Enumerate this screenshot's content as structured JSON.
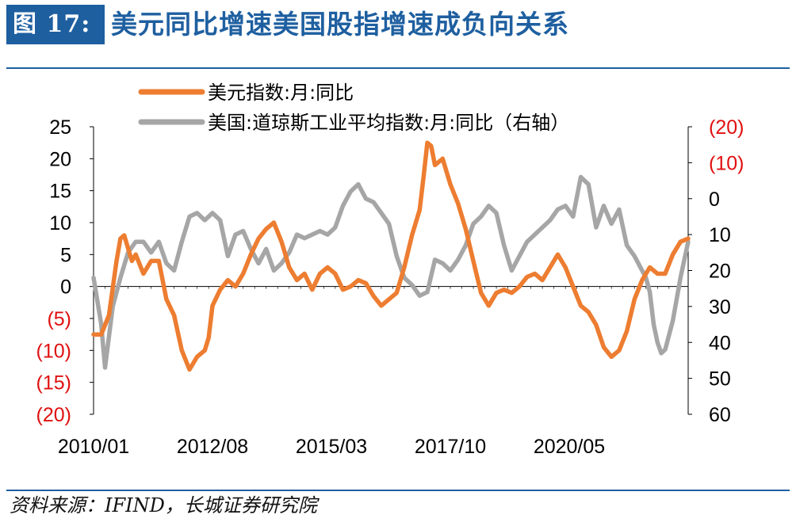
{
  "header": {
    "figure_label": "图 17:",
    "title": "美元同比增速美国股指增速成负向关系"
  },
  "footer": {
    "source": "资料来源：IFIND，长城证券研究院"
  },
  "colors": {
    "brand_blue": "#1e5fa0",
    "usd_series": "#ed7d31",
    "dow_series": "#a6a6a6",
    "negative_label": "#e01010"
  },
  "chart_data": {
    "type": "line",
    "title": "",
    "x_axis": {
      "tick_labels": [
        "2010/01",
        "2012/08",
        "2015/03",
        "2017/10",
        "2020/05"
      ],
      "range": [
        "2010/01",
        "2022/12"
      ]
    },
    "left_axis": {
      "range": [
        -20,
        25
      ],
      "ticks": [
        25,
        20,
        15,
        10,
        5,
        0,
        -5,
        -10,
        -15,
        -20
      ],
      "tick_labels": [
        "25",
        "20",
        "15",
        "10",
        "5",
        "0",
        "(5)",
        "(10)",
        "(15)",
        "(20)"
      ]
    },
    "right_axis": {
      "inverted": true,
      "range": [
        -20,
        60
      ],
      "ticks": [
        -20,
        -10,
        0,
        10,
        20,
        30,
        40,
        50,
        60
      ],
      "tick_labels": [
        "(20)",
        "(10)",
        "0",
        "10",
        "20",
        "30",
        "40",
        "50",
        "60"
      ]
    },
    "legend_position": "top-left",
    "grid": false,
    "series": [
      {
        "name": "美元指数:月:同比",
        "axis": "left",
        "color": "#ed7d31",
        "points": [
          [
            "2010/01",
            -7.5
          ],
          [
            "2010/03",
            -7.5
          ],
          [
            "2010/05",
            -4.5
          ],
          [
            "2010/07",
            4
          ],
          [
            "2010/08",
            7.5
          ],
          [
            "2010/09",
            8
          ],
          [
            "2010/10",
            6
          ],
          [
            "2010/11",
            4
          ],
          [
            "2010/12",
            5
          ],
          [
            "2011/02",
            2
          ],
          [
            "2011/04",
            4
          ],
          [
            "2011/06",
            4
          ],
          [
            "2011/08",
            -2
          ],
          [
            "2011/10",
            -4.5
          ],
          [
            "2011/12",
            -10
          ],
          [
            "2012/02",
            -13
          ],
          [
            "2012/04",
            -11
          ],
          [
            "2012/06",
            -10
          ],
          [
            "2012/07",
            -8
          ],
          [
            "2012/08",
            -3
          ],
          [
            "2012/10",
            -0.5
          ],
          [
            "2012/12",
            1
          ],
          [
            "2013/02",
            0
          ],
          [
            "2013/04",
            2
          ],
          [
            "2013/06",
            5
          ],
          [
            "2013/08",
            7.5
          ],
          [
            "2013/10",
            9
          ],
          [
            "2013/12",
            10
          ],
          [
            "2014/02",
            7
          ],
          [
            "2014/04",
            3
          ],
          [
            "2014/06",
            1
          ],
          [
            "2014/08",
            2
          ],
          [
            "2014/10",
            -0.5
          ],
          [
            "2014/12",
            2
          ],
          [
            "2015/02",
            3
          ],
          [
            "2015/04",
            2
          ],
          [
            "2015/06",
            -0.5
          ],
          [
            "2015/08",
            0
          ],
          [
            "2015/10",
            1
          ],
          [
            "2015/12",
            0.5
          ],
          [
            "2016/02",
            -1.5
          ],
          [
            "2016/04",
            -3
          ],
          [
            "2016/06",
            -2
          ],
          [
            "2016/08",
            -1
          ],
          [
            "2016/10",
            3
          ],
          [
            "2016/12",
            8
          ],
          [
            "2017/02",
            12
          ],
          [
            "2017/03",
            17
          ],
          [
            "2017/04",
            22.5
          ],
          [
            "2017/05",
            22
          ],
          [
            "2017/06",
            19
          ],
          [
            "2017/08",
            20
          ],
          [
            "2017/10",
            16
          ],
          [
            "2017/12",
            13
          ],
          [
            "2018/02",
            9
          ],
          [
            "2018/04",
            4
          ],
          [
            "2018/06",
            -1
          ],
          [
            "2018/08",
            -3
          ],
          [
            "2018/10",
            -1
          ],
          [
            "2018/12",
            -0.5
          ],
          [
            "2019/02",
            -1
          ],
          [
            "2019/04",
            0
          ],
          [
            "2019/06",
            1.5
          ],
          [
            "2019/08",
            2
          ],
          [
            "2019/10",
            1
          ],
          [
            "2019/12",
            3
          ],
          [
            "2020/02",
            5
          ],
          [
            "2020/04",
            3
          ],
          [
            "2020/06",
            0
          ],
          [
            "2020/08",
            -3
          ],
          [
            "2020/10",
            -4
          ],
          [
            "2020/12",
            -6
          ],
          [
            "2021/02",
            -9.5
          ],
          [
            "2021/04",
            -11
          ],
          [
            "2021/06",
            -10
          ],
          [
            "2021/08",
            -7
          ],
          [
            "2021/10",
            -2
          ],
          [
            "2021/12",
            1
          ],
          [
            "2022/02",
            3
          ],
          [
            "2022/04",
            2
          ],
          [
            "2022/06",
            2
          ],
          [
            "2022/08",
            5
          ],
          [
            "2022/10",
            7
          ],
          [
            "2022/12",
            7.5
          ]
        ]
      },
      {
        "name": "美国:道琼斯工业平均指数:月:同比（右轴）",
        "axis": "right",
        "color": "#a6a6a6",
        "points": [
          [
            "2010/01",
            22
          ],
          [
            "2010/03",
            35
          ],
          [
            "2010/04",
            47
          ],
          [
            "2010/06",
            30
          ],
          [
            "2010/08",
            22
          ],
          [
            "2010/10",
            15
          ],
          [
            "2010/12",
            12
          ],
          [
            "2011/02",
            12
          ],
          [
            "2011/04",
            15
          ],
          [
            "2011/06",
            12
          ],
          [
            "2011/08",
            18
          ],
          [
            "2011/10",
            20
          ],
          [
            "2011/12",
            12
          ],
          [
            "2012/02",
            5
          ],
          [
            "2012/04",
            4
          ],
          [
            "2012/06",
            6
          ],
          [
            "2012/08",
            4
          ],
          [
            "2012/10",
            6
          ],
          [
            "2012/12",
            16
          ],
          [
            "2013/02",
            10
          ],
          [
            "2013/04",
            9
          ],
          [
            "2013/06",
            14
          ],
          [
            "2013/08",
            18
          ],
          [
            "2013/10",
            14
          ],
          [
            "2013/12",
            20
          ],
          [
            "2014/02",
            18
          ],
          [
            "2014/04",
            15
          ],
          [
            "2014/06",
            10
          ],
          [
            "2014/08",
            11
          ],
          [
            "2014/10",
            10
          ],
          [
            "2014/12",
            9
          ],
          [
            "2015/02",
            10
          ],
          [
            "2015/04",
            8
          ],
          [
            "2015/06",
            2
          ],
          [
            "2015/08",
            -2
          ],
          [
            "2015/10",
            -4
          ],
          [
            "2015/12",
            0
          ],
          [
            "2016/02",
            1
          ],
          [
            "2016/04",
            4
          ],
          [
            "2016/06",
            7
          ],
          [
            "2016/08",
            16
          ],
          [
            "2016/10",
            22
          ],
          [
            "2016/12",
            24
          ],
          [
            "2017/02",
            27
          ],
          [
            "2017/04",
            26
          ],
          [
            "2017/06",
            17
          ],
          [
            "2017/08",
            18
          ],
          [
            "2017/10",
            20
          ],
          [
            "2017/12",
            17
          ],
          [
            "2018/02",
            13
          ],
          [
            "2018/04",
            7
          ],
          [
            "2018/06",
            5
          ],
          [
            "2018/08",
            2
          ],
          [
            "2018/10",
            4
          ],
          [
            "2018/12",
            13
          ],
          [
            "2019/02",
            20
          ],
          [
            "2019/04",
            16
          ],
          [
            "2019/06",
            12
          ],
          [
            "2019/08",
            10
          ],
          [
            "2019/10",
            8
          ],
          [
            "2019/12",
            6
          ],
          [
            "2020/02",
            3
          ],
          [
            "2020/04",
            2
          ],
          [
            "2020/06",
            5
          ],
          [
            "2020/08",
            -6
          ],
          [
            "2020/10",
            -4
          ],
          [
            "2020/12",
            8
          ],
          [
            "2021/02",
            2
          ],
          [
            "2021/04",
            7
          ],
          [
            "2021/06",
            3
          ],
          [
            "2021/08",
            13
          ],
          [
            "2021/10",
            16
          ],
          [
            "2021/12",
            20
          ],
          [
            "2022/01",
            22
          ],
          [
            "2022/02",
            26
          ],
          [
            "2022/03",
            35
          ],
          [
            "2022/04",
            40
          ],
          [
            "2022/05",
            43
          ],
          [
            "2022/06",
            42
          ],
          [
            "2022/08",
            34
          ],
          [
            "2022/10",
            22
          ],
          [
            "2022/12",
            12
          ]
        ]
      }
    ]
  }
}
